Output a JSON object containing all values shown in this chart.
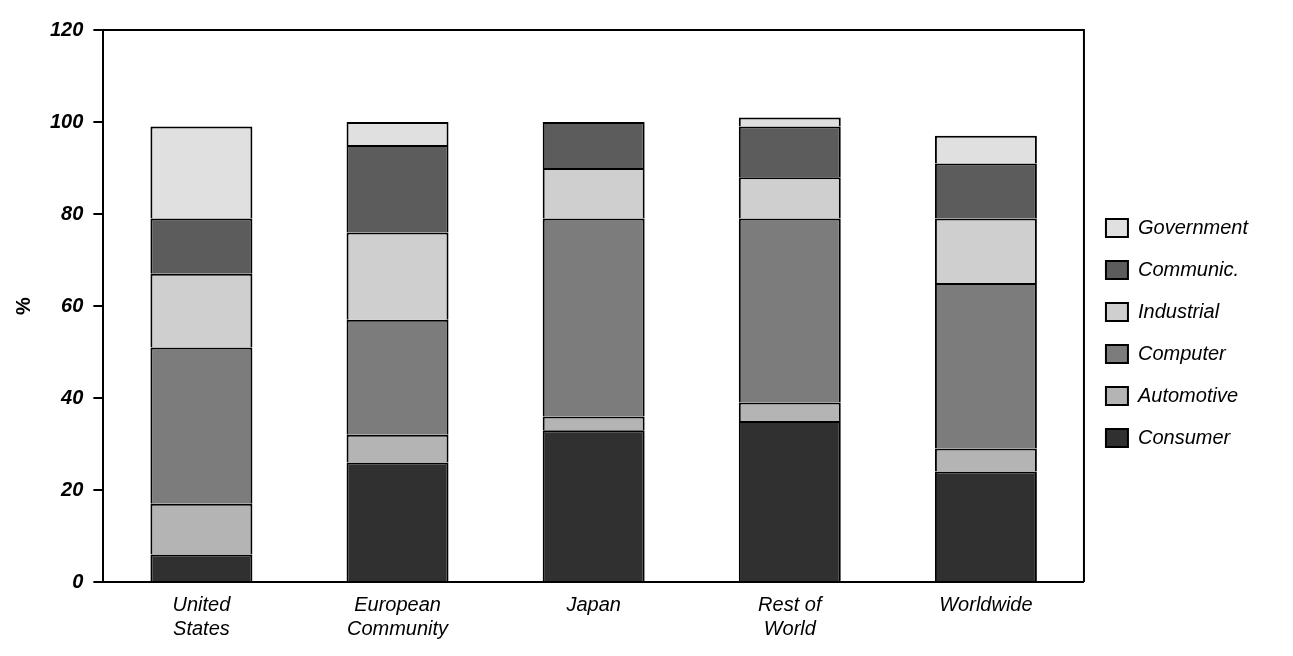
{
  "chart_data": {
    "type": "bar",
    "stacked": true,
    "ylabel": "%",
    "categories": [
      "United States",
      "European Community",
      "Japan",
      "Rest of World",
      "Worldwide"
    ],
    "series": [
      {
        "name": "Consumer",
        "color": "#303030",
        "values": [
          6,
          26,
          33,
          35,
          24
        ]
      },
      {
        "name": "Automotive",
        "color": "#b4b4b4",
        "values": [
          11,
          6,
          3,
          4,
          5
        ]
      },
      {
        "name": "Computer",
        "color": "#7c7c7c",
        "values": [
          34,
          25,
          43,
          40,
          36
        ]
      },
      {
        "name": "Industrial",
        "color": "#cfcfcf",
        "values": [
          16,
          19,
          11,
          9,
          14
        ]
      },
      {
        "name": "Communic.",
        "color": "#5c5c5c",
        "values": [
          12,
          19,
          10,
          11,
          12
        ]
      },
      {
        "name": "Government",
        "color": "#e0e0e0",
        "values": [
          20,
          5,
          0,
          2,
          6
        ]
      }
    ],
    "ylim": [
      0,
      120
    ],
    "yticks": [
      0,
      20,
      40,
      60,
      80,
      100,
      120
    ],
    "grid": false,
    "legend": "right"
  }
}
